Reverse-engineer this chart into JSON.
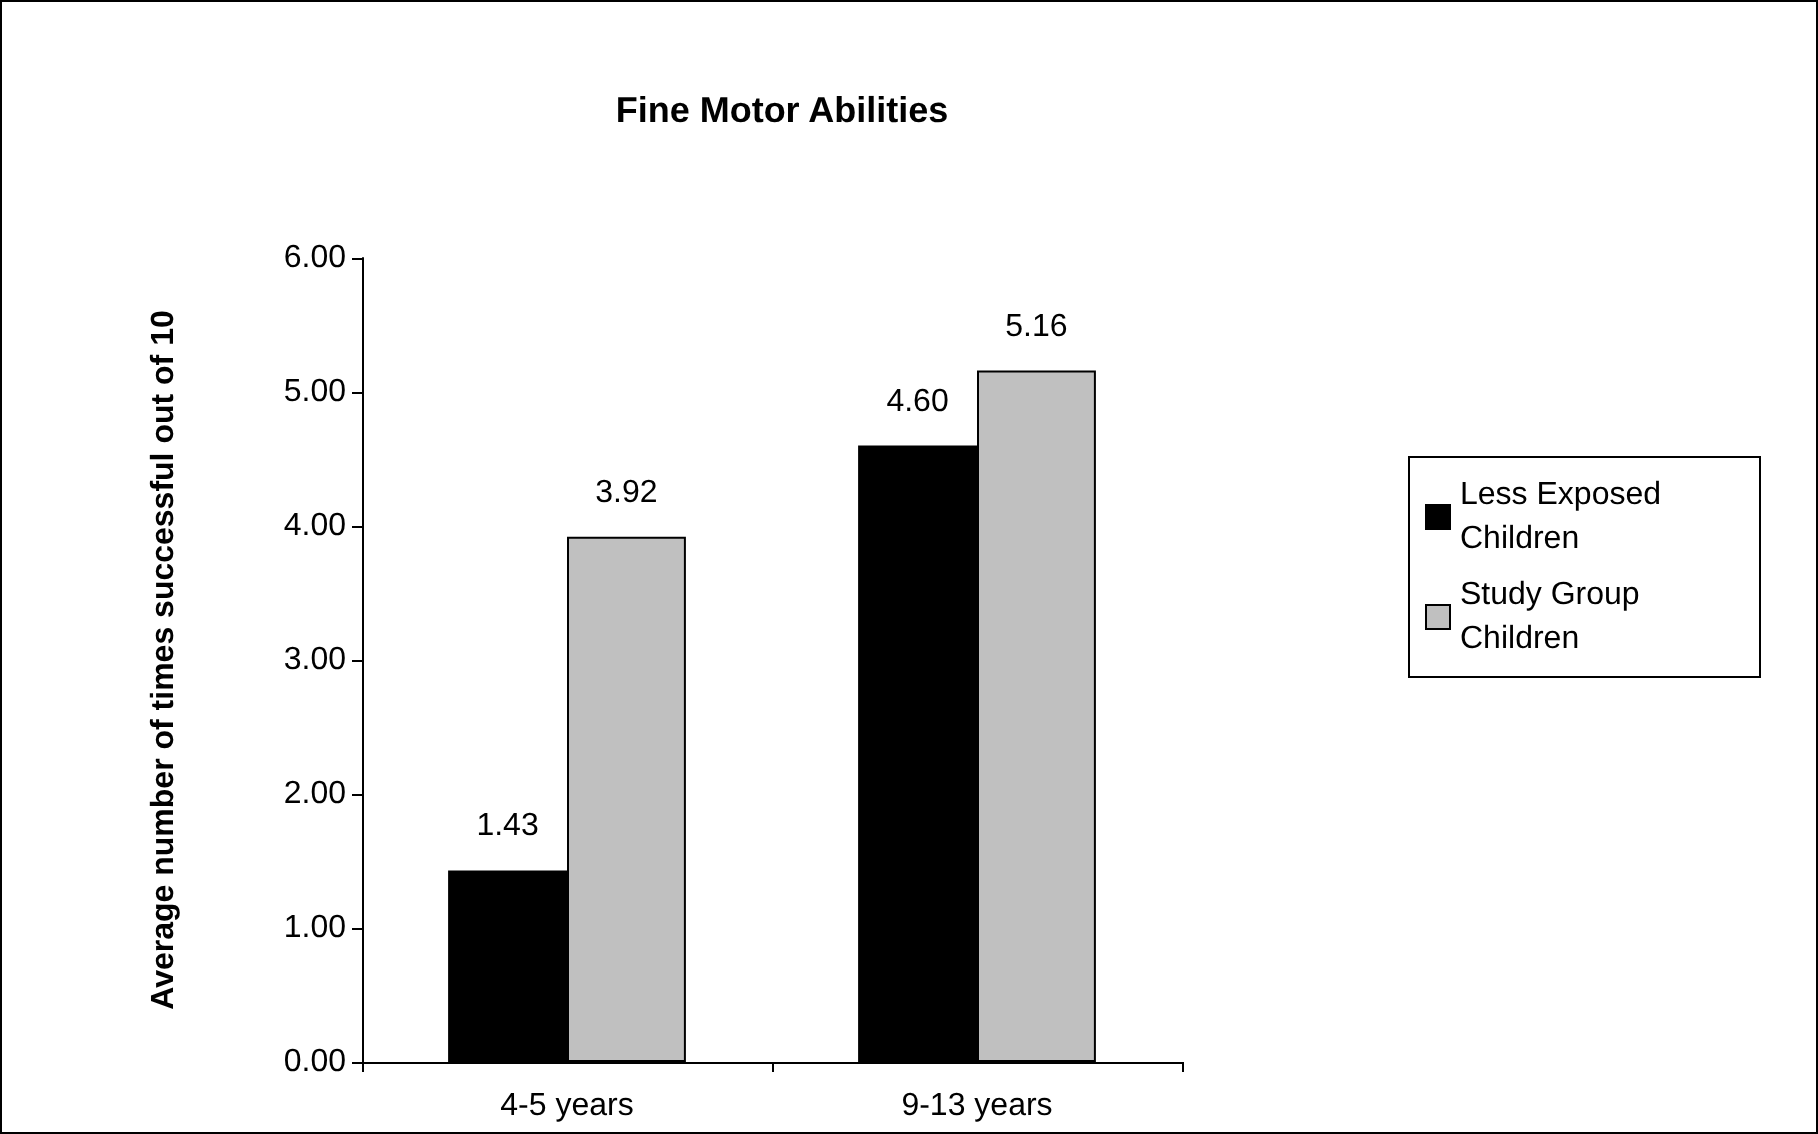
{
  "chart_data": {
    "type": "bar",
    "title": "Fine Motor Abilities",
    "ylabel": "Average number of times successful out of 10",
    "categories": [
      "4-5 years",
      "9-13 years"
    ],
    "series": [
      {
        "name": "Less Exposed Children",
        "color": "#000000",
        "values": [
          1.43,
          4.6
        ],
        "value_labels": [
          "1.43",
          "4.60"
        ]
      },
      {
        "name": "Study Group Children",
        "color": "#c0c0c0",
        "values": [
          3.92,
          5.16
        ],
        "value_labels": [
          "3.92",
          "5.16"
        ]
      }
    ],
    "ylim": [
      0,
      6
    ],
    "yticks": [
      {
        "value": 0,
        "label": "0.00"
      },
      {
        "value": 1,
        "label": "1.00"
      },
      {
        "value": 2,
        "label": "2.00"
      },
      {
        "value": 3,
        "label": "3.00"
      },
      {
        "value": 4,
        "label": "4.00"
      },
      {
        "value": 5,
        "label": "5.00"
      },
      {
        "value": 6,
        "label": "6.00"
      }
    ],
    "grid": false,
    "legend": "right"
  }
}
